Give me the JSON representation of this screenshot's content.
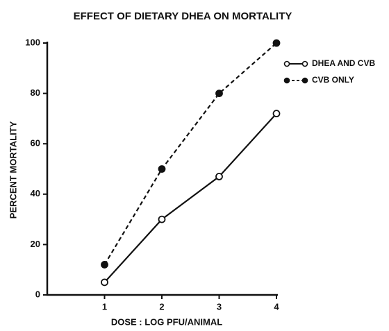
{
  "chart_data": {
    "type": "line",
    "title": "EFFECT OF DIETARY DHEA ON MORTALITY",
    "xlabel": "DOSE : LOG PFU/ANIMAL",
    "ylabel": "PERCENT MORTALITY",
    "x": [
      1,
      2,
      3,
      4
    ],
    "series": [
      {
        "name": "DHEA AND CVB",
        "color": "#111111",
        "marker": "open",
        "dashed": false,
        "values": [
          5,
          30,
          47,
          72
        ]
      },
      {
        "name": "CVB ONLY",
        "color": "#111111",
        "marker": "filled",
        "dashed": true,
        "values": [
          12,
          50,
          80,
          100
        ]
      }
    ],
    "xlim": [
      0,
      4
    ],
    "xticks": [
      1,
      2,
      3,
      4
    ],
    "ylim": [
      0,
      100
    ],
    "yticks": [
      0,
      20,
      40,
      60,
      80,
      100
    ],
    "grid": false,
    "legend": "upper right"
  }
}
